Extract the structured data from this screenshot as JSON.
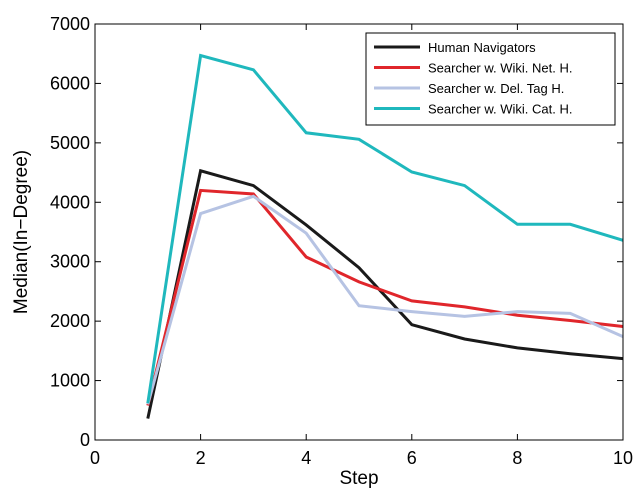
{
  "chart_data": {
    "type": "line",
    "xlabel": "Step",
    "ylabel": "Median(In−Degree)",
    "xlim": [
      0,
      10
    ],
    "ylim": [
      0,
      7000
    ],
    "xticks": [
      "0",
      "2",
      "4",
      "6",
      "8",
      "10"
    ],
    "yticks": [
      "0",
      "1000",
      "2000",
      "3000",
      "4000",
      "5000",
      "6000",
      "7000"
    ],
    "grid": false,
    "legend_position": "top-right",
    "x": [
      1,
      2,
      3,
      4,
      5,
      6,
      7,
      8,
      9,
      10
    ],
    "series": [
      {
        "name": "Human Navigators",
        "color": "#1a1a1a",
        "values": [
          360,
          4530,
          4280,
          3620,
          2900,
          1940,
          1700,
          1550,
          1450,
          1370
        ]
      },
      {
        "name": "Searcher w. Wiki. Net. H.",
        "color": "#e0262b",
        "values": [
          580,
          4200,
          4140,
          3080,
          2660,
          2340,
          2240,
          2100,
          2010,
          1910
        ]
      },
      {
        "name": "Searcher w. Del. Tag H.",
        "color": "#b6c3e3",
        "values": [
          600,
          3810,
          4100,
          3480,
          2260,
          2160,
          2080,
          2160,
          2130,
          1740
        ]
      },
      {
        "name": "Searcher w. Wiki. Cat. H.",
        "color": "#1fb8bd",
        "values": [
          620,
          6470,
          6230,
          5170,
          5060,
          4510,
          4280,
          3630,
          3630,
          3360
        ]
      }
    ]
  }
}
